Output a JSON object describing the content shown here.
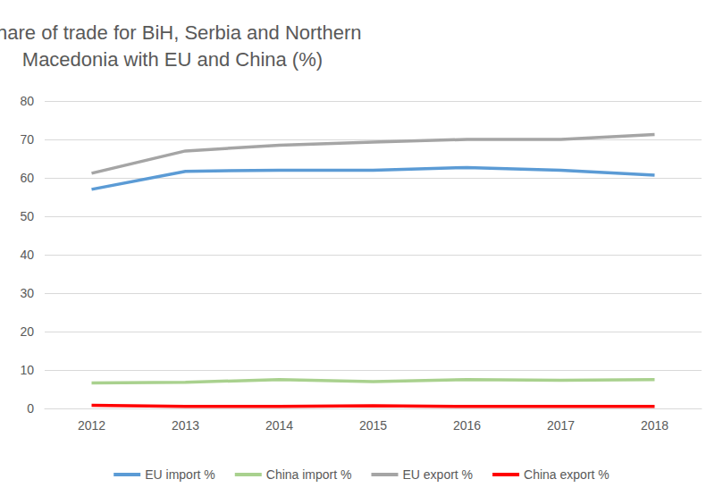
{
  "chart_data": {
    "type": "line",
    "title": "Share of trade for BiH, Serbia and Northern\nMacedonia with EU and China (%)",
    "categories": [
      "2012",
      "2013",
      "2014",
      "2015",
      "2016",
      "2017",
      "2018"
    ],
    "series": [
      {
        "name": "EU import %",
        "color": "#5b9bd5",
        "values": [
          57,
          61.7,
          62,
          62,
          62.7,
          62,
          60.7
        ]
      },
      {
        "name": "China import %",
        "color": "#a9d18e",
        "values": [
          6.6,
          6.8,
          7.5,
          7,
          7.5,
          7.3,
          7.5
        ]
      },
      {
        "name": "EU export %",
        "color": "#a5a5a5",
        "values": [
          61.2,
          67,
          68.5,
          69.3,
          70,
          70,
          71.3
        ]
      },
      {
        "name": "China export %",
        "color": "#ff0000",
        "values": [
          0.8,
          0.5,
          0.5,
          0.7,
          0.5,
          0.5,
          0.5
        ]
      }
    ],
    "ylim": [
      0,
      80
    ],
    "yticks": [
      0,
      10,
      20,
      30,
      40,
      50,
      60,
      70,
      80
    ],
    "grid": true,
    "legend": "bottom",
    "marker": "none"
  }
}
